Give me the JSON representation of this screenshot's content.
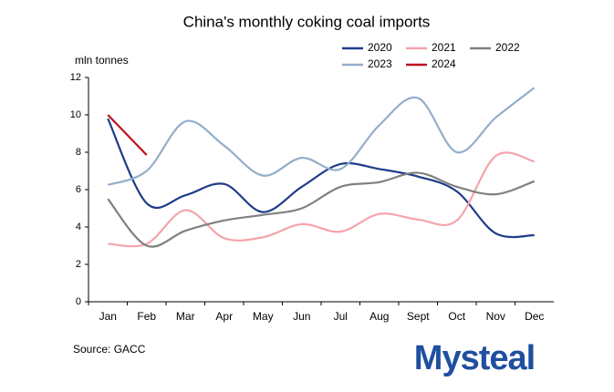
{
  "chart_data": {
    "type": "line",
    "title": "China's monthly coking coal imports",
    "y_label": "mln tonnes",
    "source": "Source: GACC",
    "logo": "Mysteal",
    "categories": [
      "Jan",
      "Feb",
      "Mar",
      "Apr",
      "May",
      "Jun",
      "Jul",
      "Aug",
      "Sept",
      "Oct",
      "Nov",
      "Dec"
    ],
    "ylim": [
      0,
      12
    ],
    "yticks": [
      0,
      2,
      4,
      6,
      8,
      10,
      12
    ],
    "series": [
      {
        "name": "2020",
        "color": "#1f3c88",
        "values": [
          9.8,
          5.27,
          5.7,
          6.3,
          4.8,
          6.15,
          7.37,
          7.1,
          6.7,
          5.9,
          3.66,
          3.56
        ]
      },
      {
        "name": "2021",
        "color": "#f4a4ab",
        "values": [
          3.1,
          3.1,
          4.9,
          3.4,
          3.45,
          4.15,
          3.75,
          4.7,
          4.4,
          4.35,
          7.8,
          7.5
        ]
      },
      {
        "name": "2022",
        "color": "#808080",
        "values": [
          5.5,
          3.0,
          3.8,
          4.35,
          4.65,
          5.0,
          6.15,
          6.4,
          6.9,
          6.15,
          5.75,
          6.45
        ]
      },
      {
        "name": "2023",
        "color": "#94aecb",
        "values": [
          6.25,
          7.0,
          9.65,
          8.35,
          6.75,
          7.7,
          7.1,
          9.45,
          10.9,
          8.0,
          9.85,
          11.45
        ]
      },
      {
        "name": "2024",
        "color": "#c0141e",
        "values": [
          10.0,
          7.85,
          null,
          null,
          null,
          null,
          null,
          null,
          null,
          null,
          null,
          null
        ]
      }
    ]
  }
}
